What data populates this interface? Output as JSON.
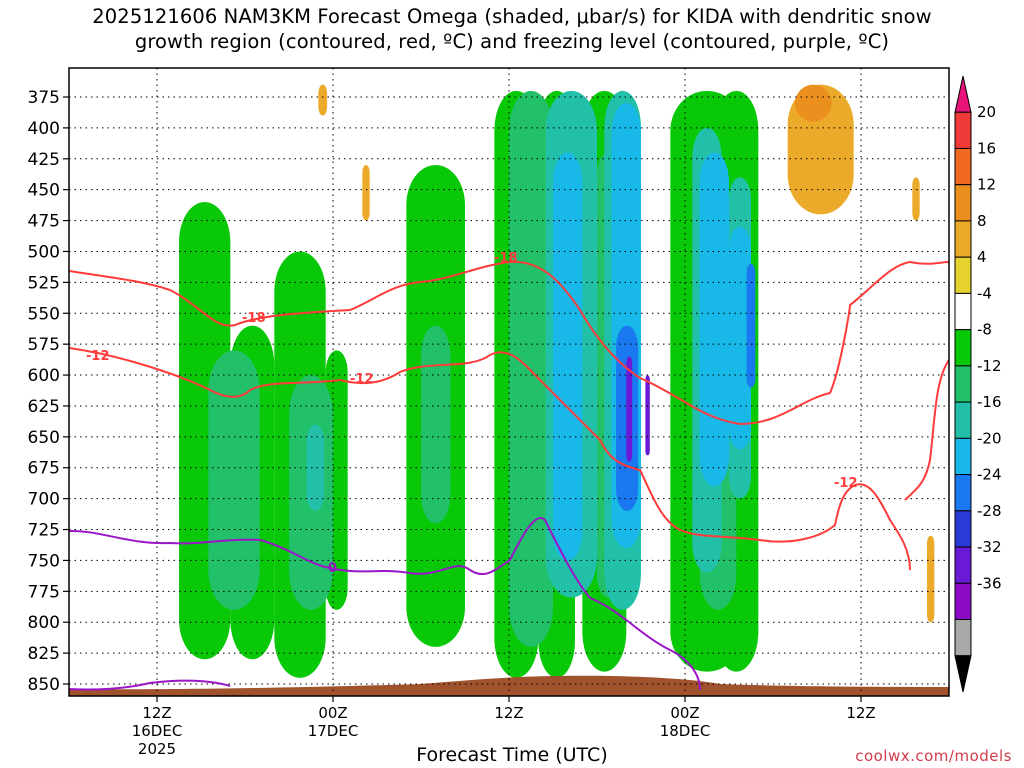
{
  "title": {
    "line1": "2025121606 NAM3KM Forecast Omega (shaded, μbar/s) for KIDA with dendritic snow",
    "line2": "growth region (contoured, red, ºC) and freezing level (contoured, purple, ºC)"
  },
  "credit": "coolwx.com/models",
  "chart_data": {
    "type": "heatmap",
    "title": "2025121606 NAM3KM Forecast Omega (shaded, μbar/s) for KIDA with dendritic snow growth region (contoured, red, ºC) and freezing level (contoured, purple, ºC)",
    "xlabel": "Forecast Time (UTC)",
    "ylabel": "",
    "y_axis": {
      "unit": "hPa",
      "inverted": true,
      "range": [
        850,
        365
      ],
      "ticks": [
        375,
        400,
        425,
        450,
        475,
        500,
        525,
        550,
        575,
        600,
        625,
        650,
        675,
        700,
        725,
        750,
        775,
        800,
        825,
        850
      ]
    },
    "x_axis": {
      "ticks": [
        {
          "label": "12Z",
          "sub": "16DEC",
          "sub2": "2025",
          "hour": 6
        },
        {
          "label": "00Z",
          "sub": "17DEC",
          "sub2": "",
          "hour": 18
        },
        {
          "label": "12Z",
          "sub": "",
          "sub2": "",
          "hour": 30
        },
        {
          "label": "00Z",
          "sub": "18DEC",
          "sub2": "",
          "hour": 42
        },
        {
          "label": "12Z",
          "sub": "",
          "sub2": "",
          "hour": 54
        }
      ],
      "range_hours": [
        0,
        60
      ]
    },
    "grid": true,
    "colorbar": {
      "ticks": [
        20,
        16,
        12,
        8,
        4,
        -4,
        -8,
        -12,
        -16,
        -20,
        -24,
        -28,
        -32,
        -36
      ],
      "colors": [
        "#e8147a",
        "#f03a3a",
        "#f06a22",
        "#eb8f1e",
        "#ecaa2a",
        "#e6d22e",
        "#ffffff",
        "#08c808",
        "#22c068",
        "#22c0a8",
        "#18b8e8",
        "#1a78f0",
        "#2a3ad6",
        "#6a1ad6",
        "#8a0ac6",
        "#a8a8a8",
        "#000000"
      ]
    },
    "contours": {
      "red_labels": [
        "-18",
        "-18",
        "-12",
        "-12",
        "-12"
      ],
      "purple_labels": [
        "0"
      ]
    },
    "cells": [
      {
        "t": [
          0,
          1.2
        ],
        "p": [
          560,
          840
        ],
        "v": -6
      },
      {
        "t": [
          1.5,
          4
        ],
        "p": [
          520,
          835
        ],
        "v": -6
      },
      {
        "t": [
          4,
          7.5
        ],
        "p": [
          370,
          850
        ],
        "v": -6
      },
      {
        "t": [
          7.5,
          11
        ],
        "p": [
          370,
          850
        ],
        "v": -6
      },
      {
        "t": [
          11,
          15
        ],
        "p": [
          380,
          840
        ],
        "v": -6
      },
      {
        "t": [
          15,
          18
        ],
        "p": [
          400,
          845
        ],
        "v": -6
      },
      {
        "t": [
          19,
          23
        ],
        "p": [
          430,
          840
        ],
        "v": -6
      },
      {
        "t": [
          23,
          27
        ],
        "p": [
          380,
          845
        ],
        "v": -6
      },
      {
        "t": [
          28,
          31.5
        ],
        "p": [
          370,
          845
        ],
        "v": -6
      },
      {
        "t": [
          31.5,
          35
        ],
        "p": [
          370,
          845
        ],
        "v": -6
      },
      {
        "t": [
          35,
          41
        ],
        "p": [
          370,
          840
        ],
        "v": -6
      },
      {
        "t": [
          41,
          45
        ],
        "p": [
          370,
          845
        ],
        "v": -6
      },
      {
        "t": [
          45,
          48
        ],
        "p": [
          370,
          845
        ],
        "v": -6
      },
      {
        "t": [
          55.5,
          58.5
        ],
        "p": [
          610,
          845
        ],
        "v": -6
      },
      {
        "t": [
          7.5,
          11
        ],
        "p": [
          460,
          830
        ],
        "v": -10
      },
      {
        "t": [
          11,
          14
        ],
        "p": [
          560,
          830
        ],
        "v": -10
      },
      {
        "t": [
          14,
          17.5
        ],
        "p": [
          500,
          845
        ],
        "v": -10
      },
      {
        "t": [
          17.5,
          19
        ],
        "p": [
          580,
          790
        ],
        "v": -10
      },
      {
        "t": [
          23,
          27
        ],
        "p": [
          430,
          820
        ],
        "v": -10
      },
      {
        "t": [
          29,
          32
        ],
        "p": [
          370,
          845
        ],
        "v": -10
      },
      {
        "t": [
          32,
          34.5
        ],
        "p": [
          370,
          845
        ],
        "v": -10
      },
      {
        "t": [
          35,
          38
        ],
        "p": [
          370,
          840
        ],
        "v": -10
      },
      {
        "t": [
          41,
          46
        ],
        "p": [
          370,
          840
        ],
        "v": -10
      },
      {
        "t": [
          44,
          47
        ],
        "p": [
          370,
          840
        ],
        "v": -10
      },
      {
        "t": [
          9.5,
          13
        ],
        "p": [
          580,
          790
        ],
        "v": -14
      },
      {
        "t": [
          15,
          18
        ],
        "p": [
          600,
          790
        ],
        "v": -14
      },
      {
        "t": [
          24,
          26
        ],
        "p": [
          560,
          720
        ],
        "v": -14
      },
      {
        "t": [
          30,
          33
        ],
        "p": [
          370,
          820
        ],
        "v": -14
      },
      {
        "t": [
          36,
          37.5
        ],
        "p": [
          420,
          780
        ],
        "v": -14
      },
      {
        "t": [
          43,
          45.5
        ],
        "p": [
          460,
          790
        ],
        "v": -14
      },
      {
        "t": [
          16.2,
          17.4
        ],
        "p": [
          640,
          710
        ],
        "v": -18
      },
      {
        "t": [
          32.5,
          36
        ],
        "p": [
          370,
          780
        ],
        "v": -18
      },
      {
        "t": [
          36.5,
          39
        ],
        "p": [
          370,
          790
        ],
        "v": -18
      },
      {
        "t": [
          42.5,
          44.5
        ],
        "p": [
          400,
          760
        ],
        "v": -18
      },
      {
        "t": [
          45,
          46.5
        ],
        "p": [
          440,
          700
        ],
        "v": -18
      },
      {
        "t": [
          33,
          35
        ],
        "p": [
          420,
          750
        ],
        "v": -22
      },
      {
        "t": [
          37,
          39
        ],
        "p": [
          380,
          740
        ],
        "v": -22
      },
      {
        "t": [
          43,
          45
        ],
        "p": [
          420,
          690
        ],
        "v": -22
      },
      {
        "t": [
          45,
          46.5
        ],
        "p": [
          480,
          660
        ],
        "v": -22
      },
      {
        "t": [
          37.3,
          38.8
        ],
        "p": [
          560,
          710
        ],
        "v": -26
      },
      {
        "t": [
          46.2,
          46.8
        ],
        "p": [
          510,
          610
        ],
        "v": -26
      },
      {
        "t": [
          38,
          38.4
        ],
        "p": [
          585,
          670
        ],
        "v": -34
      },
      {
        "t": [
          39.3,
          39.6
        ],
        "p": [
          600,
          665
        ],
        "v": -34
      },
      {
        "t": [
          17,
          17.6
        ],
        "p": [
          365,
          390
        ],
        "v": 6
      },
      {
        "t": [
          20,
          20.5
        ],
        "p": [
          430,
          475
        ],
        "v": 6
      },
      {
        "t": [
          49,
          53.5
        ],
        "p": [
          365,
          470
        ],
        "v": 6
      },
      {
        "t": [
          49.5,
          52
        ],
        "p": [
          365,
          395
        ],
        "v": 10
      },
      {
        "t": [
          57.5,
          58
        ],
        "p": [
          440,
          475
        ],
        "v": 6
      },
      {
        "t": [
          58.5,
          59
        ],
        "p": [
          730,
          800
        ],
        "v": 6
      }
    ]
  }
}
